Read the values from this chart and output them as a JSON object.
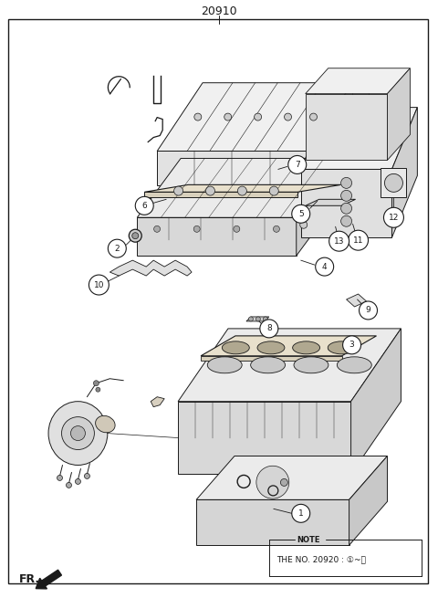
{
  "title": "20910",
  "bg_color": "#ffffff",
  "fig_width": 4.8,
  "fig_height": 6.55,
  "dpi": 100,
  "fr_label": "FR.",
  "note_line1": "NOTE",
  "note_line2": "THE NO. 20920 : ①~⑭",
  "lc": "#1a1a1a",
  "lw": 0.6
}
